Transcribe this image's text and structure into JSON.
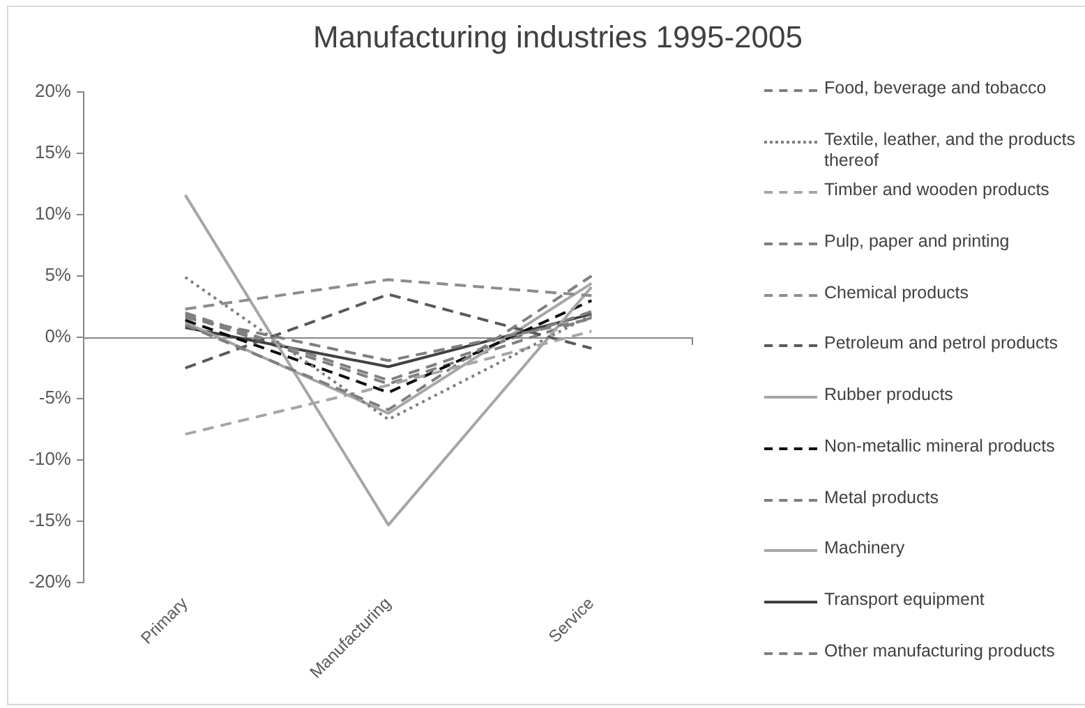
{
  "chart_data": {
    "type": "line",
    "title": "Manufacturing industries 1995-2005",
    "categories": [
      "Primary",
      "Manufacturing",
      "Service"
    ],
    "series": [
      {
        "name": "Food, beverage and tobacco",
        "color": "#7f7f7f",
        "line_style": "dashed",
        "values": [
          1.6,
          -1.9,
          1.5
        ]
      },
      {
        "name": "Textile, leather, and the products thereof",
        "color": "#7f7f7f",
        "line_style": "dotted",
        "values": [
          4.9,
          -6.7,
          1.8
        ]
      },
      {
        "name": "Timber and wooden products",
        "color": "#a6a6a6",
        "line_style": "dashed",
        "values": [
          -7.9,
          -3.9,
          0.5
        ]
      },
      {
        "name": "Pulp, paper and printing",
        "color": "#7f7f7f",
        "line_style": "dashed",
        "values": [
          1.0,
          -5.9,
          5.0
        ]
      },
      {
        "name": "Chemical products",
        "color": "#8c8c8c",
        "line_style": "dashed",
        "values": [
          2.3,
          4.7,
          3.4
        ]
      },
      {
        "name": "Petroleum and petrol products",
        "color": "#595959",
        "line_style": "dashed",
        "values": [
          -2.5,
          3.5,
          -0.9
        ]
      },
      {
        "name": "Rubber products",
        "color": "#a6a6a6",
        "line_style": "solid",
        "values": [
          11.6,
          -15.3,
          4.1
        ]
      },
      {
        "name": "Non-metallic mineral products",
        "color": "#0d0d0d",
        "line_style": "dashed",
        "values": [
          1.4,
          -4.5,
          3.0
        ]
      },
      {
        "name": "Metal products",
        "color": "#7f7f7f",
        "line_style": "dashed",
        "values": [
          2.0,
          -3.5,
          2.1
        ]
      },
      {
        "name": "Machinery",
        "color": "#a6a6a6",
        "line_style": "solid",
        "values": [
          1.2,
          -6.2,
          4.4
        ]
      },
      {
        "name": "Transport equipment",
        "color": "#404040",
        "line_style": "solid",
        "values": [
          0.8,
          -2.4,
          1.9
        ]
      },
      {
        "name": "Other manufacturing products",
        "color": "#7f7f7f",
        "line_style": "dashed",
        "values": [
          1.8,
          -3.8,
          1.6
        ]
      }
    ],
    "ylim": [
      -20,
      20
    ],
    "yticks": [
      {
        "value": -20,
        "label": "-20%"
      },
      {
        "value": -15,
        "label": "-15%"
      },
      {
        "value": -10,
        "label": "-10%"
      },
      {
        "value": -5,
        "label": "-5%"
      },
      {
        "value": 0,
        "label": "0%"
      },
      {
        "value": 5,
        "label": "5%"
      },
      {
        "value": 10,
        "label": "10%"
      },
      {
        "value": 15,
        "label": "15%"
      },
      {
        "value": 20,
        "label": "20%"
      }
    ],
    "ref_lines": [
      {
        "axis": "y",
        "value": 0,
        "color": "#868686"
      }
    ],
    "grid": false,
    "legend": "right"
  }
}
